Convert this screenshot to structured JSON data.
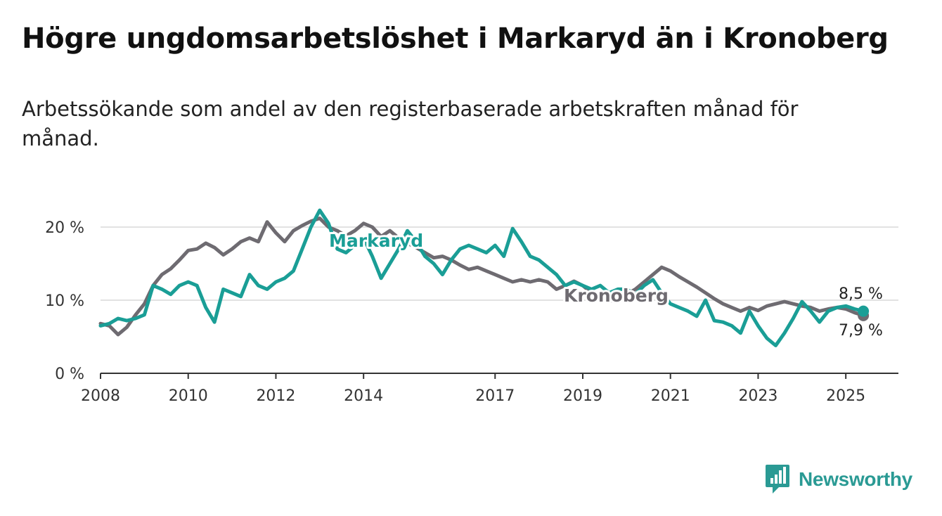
{
  "title": "Högre ungdomsarbetslöshet i Markaryd än i Kronoberg",
  "subtitle": "Arbetssökande som andel av den registerbaserade arbetskraften månad för månad.",
  "logo": {
    "name": "Newsworthy",
    "icon": "newsworthy-bar-chart-logo-icon",
    "color": "#2a9a94"
  },
  "chart_data": {
    "type": "line",
    "xlim": [
      2008,
      2026.2
    ],
    "ylim": [
      0,
      22.5
    ],
    "grid": true,
    "y_ticks": [
      0,
      10,
      20
    ],
    "y_tick_labels": [
      "0 %",
      "10 %",
      "20 %"
    ],
    "x_ticks": [
      2008,
      2010,
      2012,
      2014,
      2017,
      2019,
      2021,
      2023,
      2025
    ],
    "x_tick_labels": [
      "2008",
      "2010",
      "2012",
      "2014",
      "2017",
      "2019",
      "2021",
      "2023",
      "2025"
    ],
    "series": [
      {
        "name": "Kronoberg",
        "color": "#6e6b71",
        "end_label": "7,9 %",
        "points": [
          [
            2008.0,
            6.8
          ],
          [
            2008.2,
            6.5
          ],
          [
            2008.4,
            5.3
          ],
          [
            2008.6,
            6.3
          ],
          [
            2008.8,
            8.0
          ],
          [
            2009.0,
            9.5
          ],
          [
            2009.2,
            12.0
          ],
          [
            2009.4,
            13.5
          ],
          [
            2009.6,
            14.3
          ],
          [
            2009.8,
            15.5
          ],
          [
            2010.0,
            16.8
          ],
          [
            2010.2,
            17.0
          ],
          [
            2010.4,
            17.8
          ],
          [
            2010.6,
            17.2
          ],
          [
            2010.8,
            16.2
          ],
          [
            2011.0,
            17.0
          ],
          [
            2011.2,
            18.0
          ],
          [
            2011.4,
            18.5
          ],
          [
            2011.6,
            18.0
          ],
          [
            2011.8,
            20.7
          ],
          [
            2012.0,
            19.2
          ],
          [
            2012.2,
            18.0
          ],
          [
            2012.4,
            19.5
          ],
          [
            2012.6,
            20.2
          ],
          [
            2012.8,
            20.8
          ],
          [
            2013.0,
            21.2
          ],
          [
            2013.2,
            20.0
          ],
          [
            2013.4,
            19.5
          ],
          [
            2013.6,
            18.8
          ],
          [
            2013.8,
            19.5
          ],
          [
            2014.0,
            20.5
          ],
          [
            2014.2,
            20.0
          ],
          [
            2014.4,
            18.7
          ],
          [
            2014.6,
            19.5
          ],
          [
            2014.8,
            18.5
          ],
          [
            2015.0,
            17.8
          ],
          [
            2015.2,
            17.2
          ],
          [
            2015.4,
            16.5
          ],
          [
            2015.6,
            15.8
          ],
          [
            2015.8,
            16.0
          ],
          [
            2016.0,
            15.5
          ],
          [
            2016.2,
            14.8
          ],
          [
            2016.4,
            14.2
          ],
          [
            2016.6,
            14.5
          ],
          [
            2016.8,
            14.0
          ],
          [
            2017.0,
            13.5
          ],
          [
            2017.2,
            13.0
          ],
          [
            2017.4,
            12.5
          ],
          [
            2017.6,
            12.8
          ],
          [
            2017.8,
            12.5
          ],
          [
            2018.0,
            12.8
          ],
          [
            2018.2,
            12.5
          ],
          [
            2018.4,
            11.5
          ],
          [
            2018.6,
            12.0
          ],
          [
            2018.8,
            12.6
          ],
          [
            2019.0,
            12.0
          ],
          [
            2019.2,
            11.0
          ],
          [
            2019.4,
            10.5
          ],
          [
            2019.6,
            10.0
          ],
          [
            2019.8,
            9.8
          ],
          [
            2020.0,
            10.8
          ],
          [
            2020.2,
            11.5
          ],
          [
            2020.4,
            12.5
          ],
          [
            2020.6,
            13.5
          ],
          [
            2020.8,
            14.5
          ],
          [
            2021.0,
            14.0
          ],
          [
            2021.2,
            13.2
          ],
          [
            2021.4,
            12.5
          ],
          [
            2021.6,
            11.8
          ],
          [
            2021.8,
            11.0
          ],
          [
            2022.0,
            10.2
          ],
          [
            2022.2,
            9.5
          ],
          [
            2022.4,
            9.0
          ],
          [
            2022.6,
            8.5
          ],
          [
            2022.8,
            9.0
          ],
          [
            2023.0,
            8.6
          ],
          [
            2023.2,
            9.2
          ],
          [
            2023.4,
            9.5
          ],
          [
            2023.6,
            9.8
          ],
          [
            2023.8,
            9.5
          ],
          [
            2024.0,
            9.2
          ],
          [
            2024.2,
            9.0
          ],
          [
            2024.4,
            8.5
          ],
          [
            2024.6,
            8.8
          ],
          [
            2024.8,
            9.0
          ],
          [
            2025.0,
            8.8
          ],
          [
            2025.2,
            8.3
          ],
          [
            2025.4,
            7.9
          ]
        ]
      },
      {
        "name": "Markaryd",
        "color": "#1a9e96",
        "end_label": "8,5 %",
        "points": [
          [
            2008.0,
            6.5
          ],
          [
            2008.2,
            6.8
          ],
          [
            2008.4,
            7.5
          ],
          [
            2008.6,
            7.2
          ],
          [
            2008.8,
            7.5
          ],
          [
            2009.0,
            8.0
          ],
          [
            2009.2,
            12.0
          ],
          [
            2009.4,
            11.5
          ],
          [
            2009.6,
            10.8
          ],
          [
            2009.8,
            12.0
          ],
          [
            2010.0,
            12.5
          ],
          [
            2010.2,
            12.0
          ],
          [
            2010.4,
            9.0
          ],
          [
            2010.6,
            7.0
          ],
          [
            2010.8,
            11.5
          ],
          [
            2011.0,
            11.0
          ],
          [
            2011.2,
            10.5
          ],
          [
            2011.4,
            13.5
          ],
          [
            2011.6,
            12.0
          ],
          [
            2011.8,
            11.5
          ],
          [
            2012.0,
            12.5
          ],
          [
            2012.2,
            13.0
          ],
          [
            2012.4,
            14.0
          ],
          [
            2012.6,
            17.0
          ],
          [
            2012.8,
            20.0
          ],
          [
            2013.0,
            22.3
          ],
          [
            2013.2,
            20.5
          ],
          [
            2013.4,
            17.0
          ],
          [
            2013.6,
            16.5
          ],
          [
            2013.8,
            17.5
          ],
          [
            2014.0,
            18.5
          ],
          [
            2014.2,
            16.0
          ],
          [
            2014.4,
            13.0
          ],
          [
            2014.6,
            15.0
          ],
          [
            2014.8,
            17.0
          ],
          [
            2015.0,
            19.5
          ],
          [
            2015.2,
            18.0
          ],
          [
            2015.4,
            16.0
          ],
          [
            2015.6,
            15.0
          ],
          [
            2015.8,
            13.5
          ],
          [
            2016.0,
            15.5
          ],
          [
            2016.2,
            17.0
          ],
          [
            2016.4,
            17.5
          ],
          [
            2016.6,
            17.0
          ],
          [
            2016.8,
            16.5
          ],
          [
            2017.0,
            17.5
          ],
          [
            2017.2,
            16.0
          ],
          [
            2017.4,
            19.8
          ],
          [
            2017.6,
            18.0
          ],
          [
            2017.8,
            16.0
          ],
          [
            2018.0,
            15.5
          ],
          [
            2018.2,
            14.5
          ],
          [
            2018.4,
            13.5
          ],
          [
            2018.6,
            12.0
          ],
          [
            2018.8,
            12.5
          ],
          [
            2019.0,
            12.0
          ],
          [
            2019.2,
            11.5
          ],
          [
            2019.4,
            12.0
          ],
          [
            2019.6,
            11.0
          ],
          [
            2019.8,
            11.5
          ],
          [
            2020.0,
            11.5
          ],
          [
            2020.2,
            10.8
          ],
          [
            2020.4,
            12.0
          ],
          [
            2020.6,
            12.8
          ],
          [
            2020.8,
            11.0
          ],
          [
            2021.0,
            9.5
          ],
          [
            2021.2,
            9.0
          ],
          [
            2021.4,
            8.5
          ],
          [
            2021.6,
            7.8
          ],
          [
            2021.8,
            10.0
          ],
          [
            2022.0,
            7.2
          ],
          [
            2022.2,
            7.0
          ],
          [
            2022.4,
            6.5
          ],
          [
            2022.6,
            5.5
          ],
          [
            2022.8,
            8.5
          ],
          [
            2023.0,
            6.5
          ],
          [
            2023.2,
            4.8
          ],
          [
            2023.4,
            3.8
          ],
          [
            2023.6,
            5.5
          ],
          [
            2023.8,
            7.5
          ],
          [
            2024.0,
            9.8
          ],
          [
            2024.2,
            8.5
          ],
          [
            2024.4,
            7.0
          ],
          [
            2024.6,
            8.5
          ],
          [
            2024.8,
            9.0
          ],
          [
            2025.0,
            9.2
          ],
          [
            2025.2,
            8.8
          ],
          [
            2025.4,
            8.5
          ]
        ]
      }
    ]
  }
}
